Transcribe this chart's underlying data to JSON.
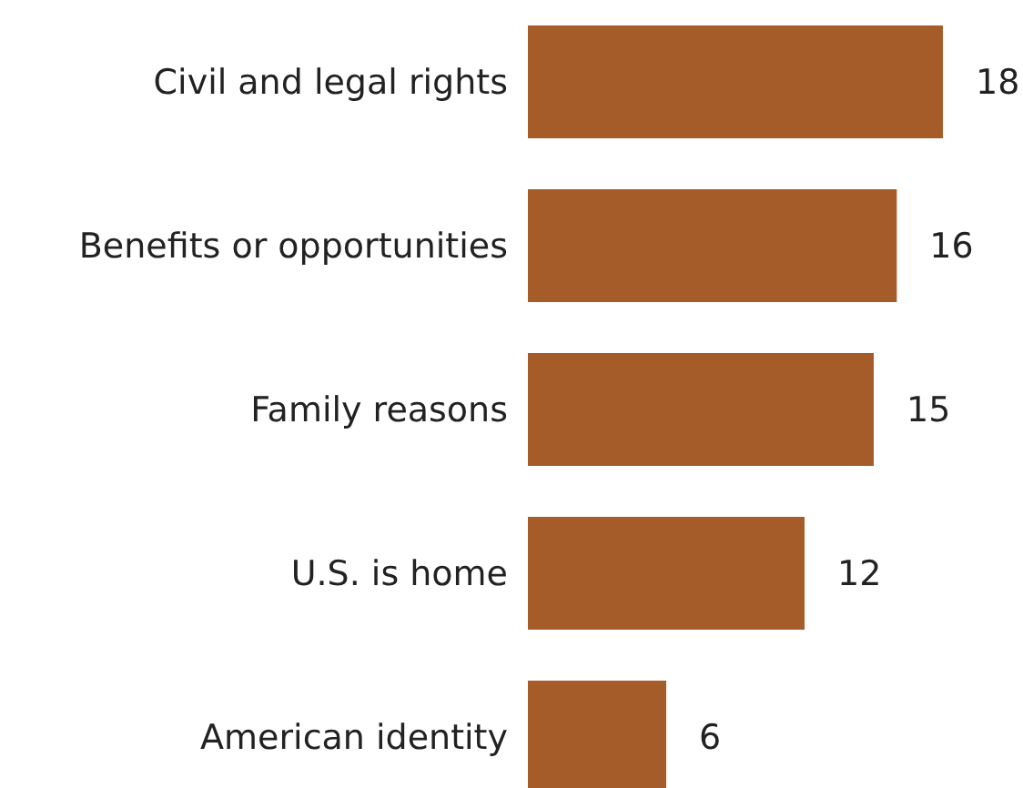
{
  "chart_data": {
    "type": "bar",
    "orientation": "horizontal",
    "data_labels": true,
    "categories": [
      "Civil and legal rights",
      "Benefits or opportunities",
      "Family reasons",
      "U.S. is home",
      "American identity"
    ],
    "values": [
      18,
      16,
      15,
      12,
      6
    ],
    "color": "#a65c28"
  }
}
